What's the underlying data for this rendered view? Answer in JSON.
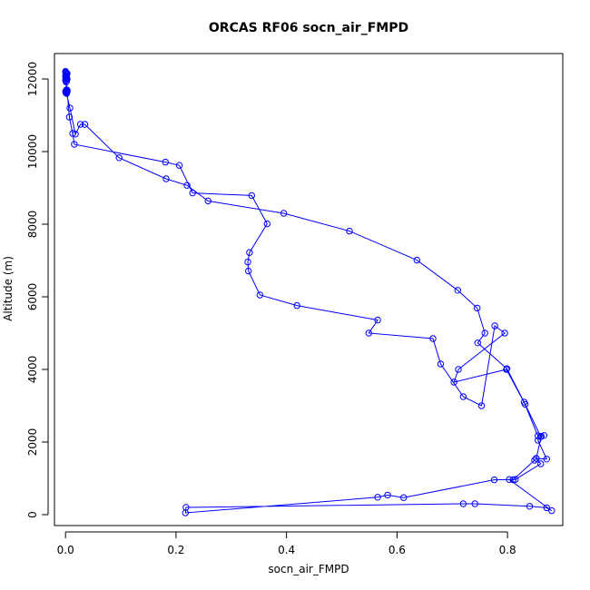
{
  "chart_data": {
    "type": "line",
    "title": "ORCAS RF06 socn_air_FMPD",
    "xlabel": "socn_air_FMPD",
    "ylabel": "Altitude (m)",
    "xlim": [
      -0.02,
      0.9
    ],
    "ylim": [
      -300,
      12700
    ],
    "xticks": [
      0.0,
      0.2,
      0.4,
      0.6,
      0.8
    ],
    "xtick_labels": [
      "0.0",
      "0.2",
      "0.4",
      "0.6",
      "0.8"
    ],
    "yticks": [
      0,
      2000,
      4000,
      6000,
      8000,
      10000,
      12000
    ],
    "ytick_labels": [
      "0",
      "2000",
      "4000",
      "6000",
      "8000",
      "10000",
      "12000"
    ],
    "grid": false,
    "legend": "none",
    "color": "#0000ff",
    "series": [
      {
        "x": [
          0.0,
          0.001,
          0.002,
          0.001,
          0.0,
          0.001,
          0.002,
          0.001,
          0.0,
          0.002,
          0.001,
          0.002,
          0.003,
          0.0,
          0.002,
          0.001,
          0.001,
          0.002,
          0.008,
          0.018,
          0.027,
          0.035,
          0.097,
          0.182,
          0.22,
          0.258,
          0.395,
          0.514,
          0.636,
          0.71,
          0.745,
          0.759,
          0.746,
          0.799,
          0.83,
          0.855,
          0.866,
          0.861,
          0.852,
          0.849,
          0.81,
          0.803,
          0.88,
          0.871,
          0.84,
          0.741,
          0.72,
          0.218,
          0.217,
          0.565,
          0.583,
          0.612,
          0.776,
          0.814,
          0.86,
          0.852,
          0.871,
          0.855,
          0.86,
          0.832,
          0.798,
          0.703,
          0.711,
          0.795,
          0.777,
          0.753,
          0.72,
          0.679,
          0.665,
          0.549,
          0.565,
          0.419,
          0.352,
          0.331,
          0.33,
          0.333,
          0.365,
          0.337,
          0.23,
          0.206,
          0.181,
          0.016,
          0.013,
          0.007,
          0.003,
          0.002,
          0.002,
          0.003,
          0.001,
          0.002,
          0.0,
          0.001,
          0.002,
          0.003,
          0.001,
          0.0
        ],
        "y": [
          12210,
          12180,
          12150,
          12120,
          12090,
          12060,
          12030,
          12000,
          11970,
          11940,
          11920,
          11700,
          11690,
          11660,
          11640,
          11630,
          11610,
          11600,
          11200,
          10480,
          10750,
          10750,
          9830,
          9250,
          9070,
          8640,
          8300,
          7810,
          7010,
          6180,
          5690,
          5000,
          4730,
          4020,
          3100,
          2170,
          2180,
          2160,
          1550,
          1500,
          960,
          970,
          110,
          190,
          230,
          300,
          300,
          200,
          50,
          480,
          540,
          470,
          960,
          970,
          1400,
          1550,
          1530,
          2050,
          2150,
          3040,
          4000,
          3650,
          4000,
          5000,
          5200,
          3000,
          3250,
          4150,
          4850,
          5000,
          5360,
          5760,
          6050,
          6710,
          6960,
          7220,
          8010,
          8790,
          8860,
          9620,
          9710,
          10200,
          10500,
          10950,
          11650,
          11670,
          11700,
          12000,
          12020,
          12040,
          12060,
          12080,
          12120,
          12150,
          12170,
          12190
        ]
      }
    ]
  }
}
